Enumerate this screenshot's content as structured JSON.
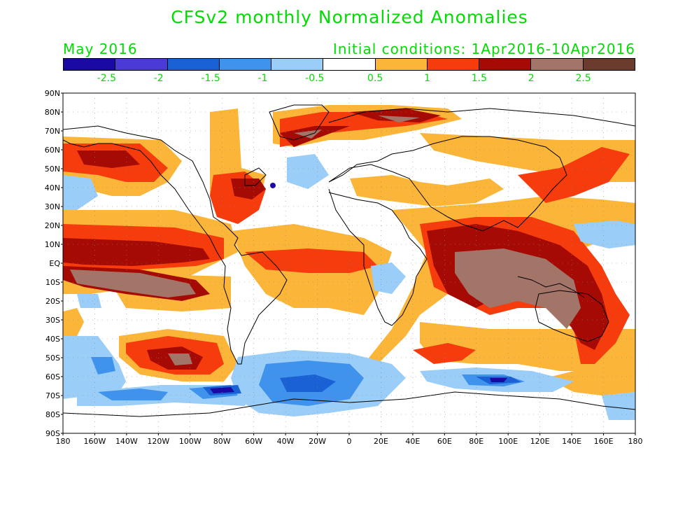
{
  "header": {
    "title": "CFSv2 monthly Normalized Anomalies",
    "month": "May 2016",
    "initial_conditions": "Initial conditions: 1Apr2016-10Apr2016"
  },
  "colorbar": {
    "colors": [
      "#1a0aa3",
      "#4b3bd6",
      "#1961d4",
      "#3f93ec",
      "#9acdf8",
      "#ffffff",
      "#fbb538",
      "#f63b0c",
      "#a50a04",
      "#a37468",
      "#6b3b2e"
    ],
    "labels": [
      "-2.5",
      "-2",
      "-1.5",
      "-1",
      "-0.5",
      "0.5",
      "1",
      "1.5",
      "2",
      "2.5"
    ]
  },
  "axes": {
    "lat_labels": [
      "90N",
      "80N",
      "70N",
      "60N",
      "50N",
      "40N",
      "30N",
      "20N",
      "10N",
      "EQ",
      "10S",
      "20S",
      "30S",
      "40S",
      "50S",
      "60S",
      "70S",
      "80S",
      "90S"
    ],
    "lon_labels": [
      "180",
      "160W",
      "140W",
      "120W",
      "100W",
      "80W",
      "60W",
      "40W",
      "20W",
      "0",
      "20E",
      "40E",
      "60E",
      "80E",
      "100E",
      "120E",
      "140E",
      "160E",
      "180"
    ]
  }
}
